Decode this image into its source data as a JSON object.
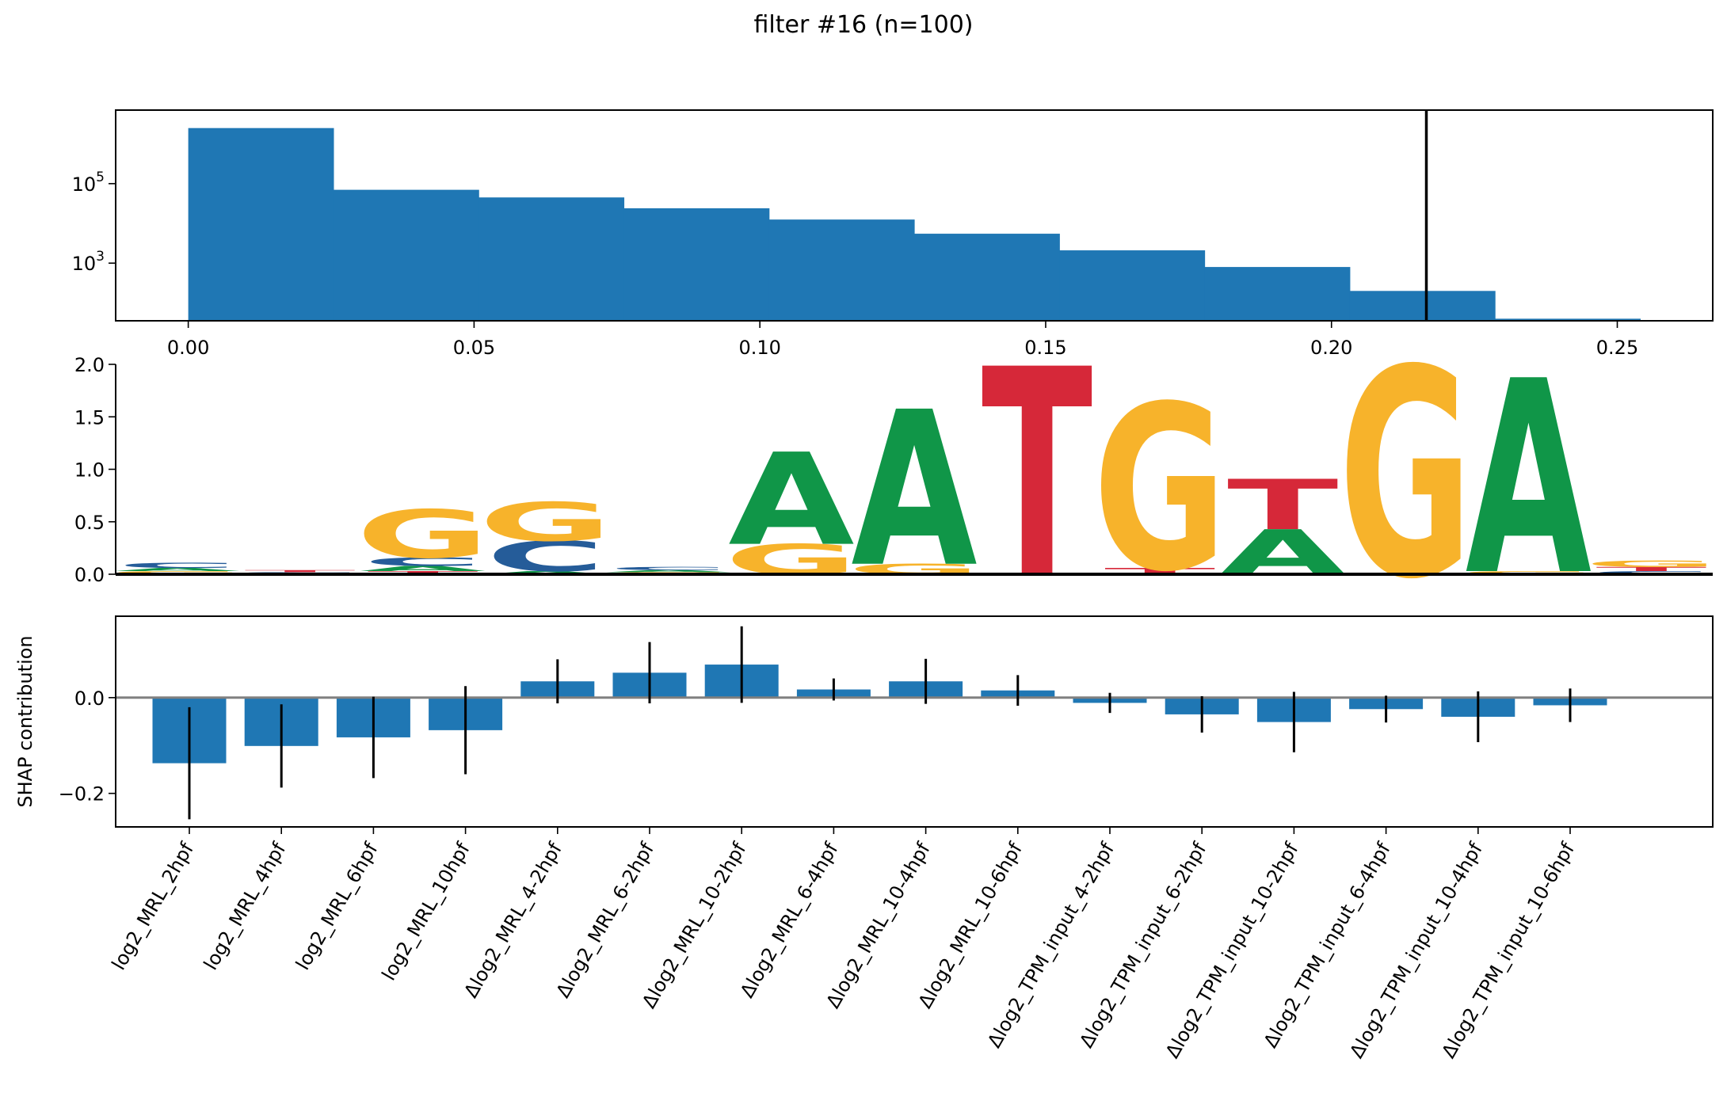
{
  "figure": {
    "title": "filter #16 (n=100)"
  },
  "chart_data": [
    {
      "type": "bar",
      "subtype": "histogram",
      "y_scale": "log",
      "bins": [
        {
          "x0": 0.0,
          "x1": 0.0254,
          "count": 2500000
        },
        {
          "x0": 0.0254,
          "x1": 0.0508,
          "count": 70000
        },
        {
          "x0": 0.0508,
          "x1": 0.0762,
          "count": 45000
        },
        {
          "x0": 0.0762,
          "x1": 0.1016,
          "count": 24000
        },
        {
          "x0": 0.1016,
          "x1": 0.127,
          "count": 12500
        },
        {
          "x0": 0.127,
          "x1": 0.1524,
          "count": 5500
        },
        {
          "x0": 0.1524,
          "x1": 0.1778,
          "count": 2100
        },
        {
          "x0": 0.1778,
          "x1": 0.2032,
          "count": 800
        },
        {
          "x0": 0.2032,
          "x1": 0.2286,
          "count": 200
        },
        {
          "x0": 0.2286,
          "x1": 0.254,
          "count": 40
        }
      ],
      "vline": 0.2166,
      "xlim": [
        -0.0127,
        0.2667
      ],
      "ylim_log10": [
        1.55,
        6.85
      ],
      "xticks": [
        0.0,
        0.05,
        0.1,
        0.15,
        0.2,
        0.25
      ],
      "xtick_labels": [
        "0.00",
        "0.05",
        "0.10",
        "0.15",
        "0.20",
        "0.25"
      ],
      "ytick_values": [
        100000,
        1000
      ],
      "ytick_labels": [
        {
          "base": "10",
          "exp": "5"
        },
        {
          "base": "10",
          "exp": "3"
        }
      ],
      "colors": {
        "bar": "#1f77b4",
        "vline": "#000000"
      }
    },
    {
      "type": "sequence_logo",
      "ylim": [
        0,
        2.0
      ],
      "yticks": [
        "0.0",
        "0.5",
        "1.0",
        "1.5",
        "2.0"
      ],
      "colors": {
        "A": "#109648",
        "C": "#255C99",
        "G": "#F7B32B",
        "T": "#D62839"
      },
      "positions": [
        [
          {
            "base": "G",
            "height": 0.03
          },
          {
            "base": "A",
            "height": 0.03
          },
          {
            "base": "C",
            "height": 0.05
          }
        ],
        [
          {
            "base": "A",
            "height": 0.01
          },
          {
            "base": "C",
            "height": 0.01
          },
          {
            "base": "T",
            "height": 0.02
          }
        ],
        [
          {
            "base": "T",
            "height": 0.03
          },
          {
            "base": "A",
            "height": 0.05
          },
          {
            "base": "C",
            "height": 0.08
          },
          {
            "base": "G",
            "height": 0.46
          }
        ],
        [
          {
            "base": "A",
            "height": 0.03
          },
          {
            "base": "C",
            "height": 0.29
          },
          {
            "base": "G",
            "height": 0.37
          }
        ],
        [
          {
            "base": "G",
            "height": 0.02
          },
          {
            "base": "A",
            "height": 0.02
          },
          {
            "base": "C",
            "height": 0.03
          }
        ],
        [
          {
            "base": "G",
            "height": 0.29
          },
          {
            "base": "A",
            "height": 0.88
          }
        ],
        [
          {
            "base": "G",
            "height": 0.1
          },
          {
            "base": "A",
            "height": 1.48
          }
        ],
        [
          {
            "base": "T",
            "height": 1.99
          }
        ],
        [
          {
            "base": "T",
            "height": 0.06
          },
          {
            "base": "G",
            "height": 1.58
          }
        ],
        [
          {
            "base": "A",
            "height": 0.43
          },
          {
            "base": "T",
            "height": 0.48
          }
        ],
        [
          {
            "base": "G",
            "height": 1.99
          }
        ],
        [
          {
            "base": "G",
            "height": 0.03
          },
          {
            "base": "A",
            "height": 1.85
          }
        ],
        [
          {
            "base": "C",
            "height": 0.03
          },
          {
            "base": "T",
            "height": 0.04
          },
          {
            "base": "G",
            "height": 0.06
          }
        ]
      ]
    },
    {
      "type": "bar",
      "ylabel": "SHAP contribution",
      "ylim": [
        -0.27,
        0.17
      ],
      "yticks": [
        -0.2,
        0.0
      ],
      "ytick_labels": [
        "−0.2",
        "0.0"
      ],
      "categories": [
        "log2_MRL_2hpf",
        "log2_MRL_4hpf",
        "log2_MRL_6hpf",
        "log2_MRL_10hpf",
        "Δlog2_MRL_4-2hpf",
        "Δlog2_MRL_6-2hpf",
        "Δlog2_MRL_10-2hpf",
        "Δlog2_MRL_6-4hpf",
        "Δlog2_MRL_10-4hpf",
        "Δlog2_MRL_10-6hpf",
        "Δlog2_TPM_input_4-2hpf",
        "Δlog2_TPM_input_6-2hpf",
        "Δlog2_TPM_input_10-2hpf",
        "Δlog2_TPM_input_6-4hpf",
        "Δlog2_TPM_input_10-4hpf",
        "Δlog2_TPM_input_10-6hpf"
      ],
      "values": [
        -0.137,
        -0.101,
        -0.083,
        -0.068,
        0.034,
        0.052,
        0.069,
        0.017,
        0.034,
        0.015,
        -0.011,
        -0.035,
        -0.051,
        -0.024,
        -0.04,
        -0.016
      ],
      "errors": [
        0.117,
        0.087,
        0.085,
        0.092,
        0.046,
        0.064,
        0.08,
        0.023,
        0.047,
        0.032,
        0.021,
        0.038,
        0.063,
        0.028,
        0.053,
        0.035
      ],
      "colors": {
        "bar": "#1f77b4",
        "error": "#000000",
        "zero_line": "#808080"
      }
    }
  ]
}
